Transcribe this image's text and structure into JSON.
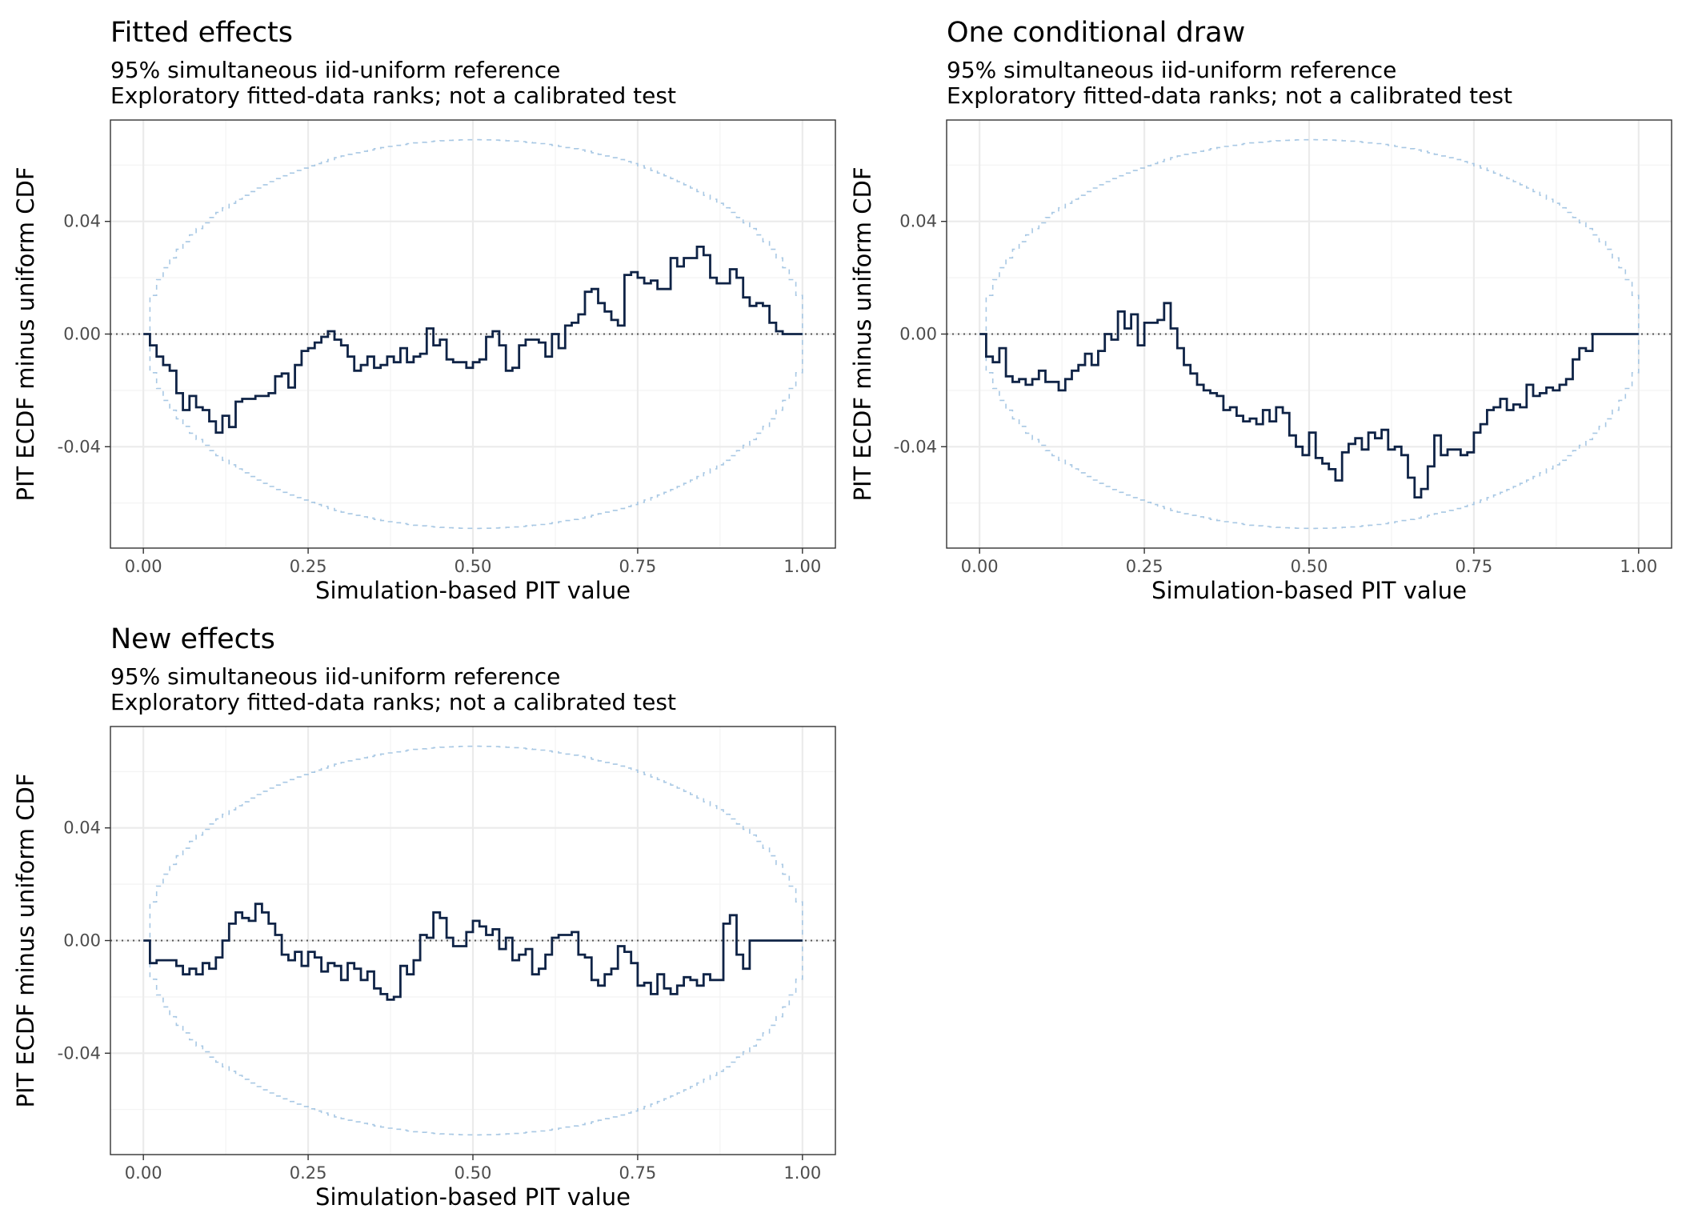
{
  "chart_data": [
    {
      "type": "line",
      "title": "Fitted effects",
      "subtitle": [
        "95% simultaneous iid-uniform reference",
        "Exploratory fitted-data ranks; not a calibrated test"
      ],
      "xlabel": "Simulation-based PIT value",
      "ylabel": "PIT ECDF minus uniform CDF",
      "xlim": [
        -0.05,
        1.05
      ],
      "ylim": [
        -0.076,
        0.076
      ],
      "xticks": [
        0.0,
        0.25,
        0.5,
        0.75,
        1.0
      ],
      "xtick_labels": [
        "0.00",
        "0.25",
        "0.50",
        "0.75",
        "1.00"
      ],
      "yticks": [
        -0.04,
        0.0,
        0.04
      ],
      "ytick_labels": [
        "-0.04",
        "0.00",
        "0.04"
      ],
      "grid": true,
      "reference_band": {
        "style": "dashed",
        "color": "#a8c8e4",
        "max_half_width": 0.069
      },
      "reference_line": {
        "y": 0,
        "style": "dotted"
      },
      "color": "#0f2346",
      "x": [
        0.0,
        0.01,
        0.02,
        0.03,
        0.04,
        0.05,
        0.06,
        0.07,
        0.08,
        0.09,
        0.1,
        0.11,
        0.12,
        0.13,
        0.14,
        0.15,
        0.16,
        0.17,
        0.18,
        0.19,
        0.2,
        0.21,
        0.22,
        0.23,
        0.24,
        0.25,
        0.26,
        0.27,
        0.28,
        0.29,
        0.3,
        0.31,
        0.32,
        0.33,
        0.34,
        0.35,
        0.36,
        0.37,
        0.38,
        0.39,
        0.4,
        0.41,
        0.42,
        0.43,
        0.44,
        0.45,
        0.46,
        0.47,
        0.48,
        0.49,
        0.5,
        0.51,
        0.52,
        0.53,
        0.54,
        0.55,
        0.56,
        0.57,
        0.58,
        0.59,
        0.6,
        0.61,
        0.62,
        0.63,
        0.64,
        0.65,
        0.66,
        0.67,
        0.68,
        0.69,
        0.7,
        0.71,
        0.72,
        0.73,
        0.74,
        0.75,
        0.76,
        0.77,
        0.78,
        0.79,
        0.8,
        0.81,
        0.82,
        0.83,
        0.84,
        0.85,
        0.86,
        0.87,
        0.88,
        0.89,
        0.9,
        0.91,
        0.92,
        0.93,
        0.94,
        0.95,
        0.96,
        0.97,
        0.98,
        0.99,
        1.0
      ],
      "y": [
        0.0,
        -0.004,
        -0.008,
        -0.011,
        -0.013,
        -0.021,
        -0.027,
        -0.022,
        -0.026,
        -0.027,
        -0.031,
        -0.035,
        -0.029,
        -0.033,
        -0.024,
        -0.023,
        -0.023,
        -0.022,
        -0.022,
        -0.021,
        -0.015,
        -0.014,
        -0.019,
        -0.011,
        -0.006,
        -0.005,
        -0.003,
        -0.001,
        0.001,
        -0.002,
        -0.004,
        -0.008,
        -0.013,
        -0.011,
        -0.008,
        -0.012,
        -0.011,
        -0.008,
        -0.01,
        -0.005,
        -0.01,
        -0.008,
        -0.007,
        0.002,
        -0.004,
        -0.002,
        -0.009,
        -0.01,
        -0.01,
        -0.012,
        -0.01,
        -0.009,
        -0.001,
        0.001,
        -0.004,
        -0.013,
        -0.012,
        -0.004,
        -0.002,
        -0.002,
        -0.003,
        -0.008,
        0.0,
        -0.005,
        0.003,
        0.004,
        0.007,
        0.015,
        0.016,
        0.011,
        0.008,
        0.005,
        0.003,
        0.021,
        0.022,
        0.02,
        0.018,
        0.019,
        0.016,
        0.016,
        0.027,
        0.024,
        0.027,
        0.027,
        0.031,
        0.028,
        0.02,
        0.018,
        0.018,
        0.023,
        0.02,
        0.013,
        0.01,
        0.011,
        0.01,
        0.004,
        0.001,
        0.0,
        0.0,
        0.0,
        0.0
      ]
    },
    {
      "type": "line",
      "title": "One conditional draw",
      "subtitle": [
        "95% simultaneous iid-uniform reference",
        "Exploratory fitted-data ranks; not a calibrated test"
      ],
      "xlabel": "Simulation-based PIT value",
      "ylabel": "PIT ECDF minus uniform CDF",
      "xlim": [
        -0.05,
        1.05
      ],
      "ylim": [
        -0.076,
        0.076
      ],
      "xticks": [
        0.0,
        0.25,
        0.5,
        0.75,
        1.0
      ],
      "xtick_labels": [
        "0.00",
        "0.25",
        "0.50",
        "0.75",
        "1.00"
      ],
      "yticks": [
        -0.04,
        0.0,
        0.04
      ],
      "ytick_labels": [
        "-0.04",
        "0.00",
        "0.04"
      ],
      "grid": true,
      "reference_band": {
        "style": "dashed",
        "color": "#a8c8e4",
        "max_half_width": 0.069
      },
      "reference_line": {
        "y": 0,
        "style": "dotted"
      },
      "color": "#0f2346",
      "x": [
        0.0,
        0.01,
        0.02,
        0.03,
        0.04,
        0.05,
        0.06,
        0.07,
        0.08,
        0.09,
        0.1,
        0.11,
        0.12,
        0.13,
        0.14,
        0.15,
        0.16,
        0.17,
        0.18,
        0.19,
        0.2,
        0.21,
        0.22,
        0.23,
        0.24,
        0.25,
        0.26,
        0.27,
        0.28,
        0.29,
        0.3,
        0.31,
        0.32,
        0.33,
        0.34,
        0.35,
        0.36,
        0.37,
        0.38,
        0.39,
        0.4,
        0.41,
        0.42,
        0.43,
        0.44,
        0.45,
        0.46,
        0.47,
        0.48,
        0.49,
        0.5,
        0.51,
        0.52,
        0.53,
        0.54,
        0.55,
        0.56,
        0.57,
        0.58,
        0.59,
        0.6,
        0.61,
        0.62,
        0.63,
        0.64,
        0.65,
        0.66,
        0.67,
        0.68,
        0.69,
        0.7,
        0.71,
        0.72,
        0.73,
        0.74,
        0.75,
        0.76,
        0.77,
        0.78,
        0.79,
        0.8,
        0.81,
        0.82,
        0.83,
        0.84,
        0.85,
        0.86,
        0.87,
        0.88,
        0.89,
        0.9,
        0.91,
        0.92,
        0.93,
        0.94,
        0.95,
        0.96,
        0.97,
        0.98,
        0.99,
        1.0
      ],
      "y": [
        0.0,
        -0.008,
        -0.01,
        -0.005,
        -0.015,
        -0.017,
        -0.016,
        -0.018,
        -0.016,
        -0.013,
        -0.017,
        -0.017,
        -0.02,
        -0.016,
        -0.013,
        -0.011,
        -0.007,
        -0.011,
        -0.006,
        0.0,
        -0.002,
        0.008,
        0.002,
        0.007,
        -0.004,
        0.004,
        0.004,
        0.005,
        0.011,
        0.002,
        -0.005,
        -0.011,
        -0.014,
        -0.018,
        -0.02,
        -0.021,
        -0.022,
        -0.027,
        -0.026,
        -0.029,
        -0.031,
        -0.03,
        -0.032,
        -0.027,
        -0.031,
        -0.026,
        -0.028,
        -0.036,
        -0.04,
        -0.043,
        -0.035,
        -0.044,
        -0.046,
        -0.048,
        -0.052,
        -0.042,
        -0.039,
        -0.037,
        -0.041,
        -0.035,
        -0.037,
        -0.034,
        -0.041,
        -0.04,
        -0.043,
        -0.051,
        -0.058,
        -0.055,
        -0.047,
        -0.036,
        -0.043,
        -0.041,
        -0.041,
        -0.043,
        -0.042,
        -0.035,
        -0.032,
        -0.027,
        -0.026,
        -0.023,
        -0.027,
        -0.025,
        -0.026,
        -0.018,
        -0.022,
        -0.021,
        -0.019,
        -0.02,
        -0.018,
        -0.016,
        -0.009,
        -0.005,
        -0.006,
        0.0,
        0.0,
        0.0,
        0.0,
        0.0,
        0.0,
        0.0,
        0.0
      ]
    },
    {
      "type": "line",
      "title": "New effects",
      "subtitle": [
        "95% simultaneous iid-uniform reference",
        "Exploratory fitted-data ranks; not a calibrated test"
      ],
      "xlabel": "Simulation-based PIT value",
      "ylabel": "PIT ECDF minus uniform CDF",
      "xlim": [
        -0.05,
        1.05
      ],
      "ylim": [
        -0.076,
        0.076
      ],
      "xticks": [
        0.0,
        0.25,
        0.5,
        0.75,
        1.0
      ],
      "xtick_labels": [
        "0.00",
        "0.25",
        "0.50",
        "0.75",
        "1.00"
      ],
      "yticks": [
        -0.04,
        0.0,
        0.04
      ],
      "ytick_labels": [
        "-0.04",
        "0.00",
        "0.04"
      ],
      "grid": true,
      "reference_band": {
        "style": "dashed",
        "color": "#a8c8e4",
        "max_half_width": 0.069
      },
      "reference_line": {
        "y": 0,
        "style": "dotted"
      },
      "color": "#0f2346",
      "x": [
        0.0,
        0.01,
        0.02,
        0.03,
        0.04,
        0.05,
        0.06,
        0.07,
        0.08,
        0.09,
        0.1,
        0.11,
        0.12,
        0.13,
        0.14,
        0.15,
        0.16,
        0.17,
        0.18,
        0.19,
        0.2,
        0.21,
        0.22,
        0.23,
        0.24,
        0.25,
        0.26,
        0.27,
        0.28,
        0.29,
        0.3,
        0.31,
        0.32,
        0.33,
        0.34,
        0.35,
        0.36,
        0.37,
        0.38,
        0.39,
        0.4,
        0.41,
        0.42,
        0.43,
        0.44,
        0.45,
        0.46,
        0.47,
        0.48,
        0.49,
        0.5,
        0.51,
        0.52,
        0.53,
        0.54,
        0.55,
        0.56,
        0.57,
        0.58,
        0.59,
        0.6,
        0.61,
        0.62,
        0.63,
        0.64,
        0.65,
        0.66,
        0.67,
        0.68,
        0.69,
        0.7,
        0.71,
        0.72,
        0.73,
        0.74,
        0.75,
        0.76,
        0.77,
        0.78,
        0.79,
        0.8,
        0.81,
        0.82,
        0.83,
        0.84,
        0.85,
        0.86,
        0.87,
        0.88,
        0.89,
        0.9,
        0.91,
        0.92,
        0.93,
        0.94,
        0.95,
        0.96,
        0.97,
        0.98,
        0.99,
        1.0
      ],
      "y": [
        0.0,
        -0.008,
        -0.007,
        -0.007,
        -0.007,
        -0.009,
        -0.012,
        -0.01,
        -0.012,
        -0.008,
        -0.01,
        -0.006,
        0.0,
        0.006,
        0.01,
        0.008,
        0.007,
        0.013,
        0.01,
        0.006,
        0.002,
        -0.005,
        -0.007,
        -0.004,
        -0.009,
        -0.004,
        -0.006,
        -0.011,
        -0.008,
        -0.009,
        -0.014,
        -0.008,
        -0.01,
        -0.014,
        -0.011,
        -0.017,
        -0.019,
        -0.021,
        -0.02,
        -0.009,
        -0.012,
        -0.007,
        0.002,
        0.001,
        0.01,
        0.008,
        0.001,
        -0.002,
        -0.002,
        0.003,
        0.007,
        0.005,
        0.002,
        0.004,
        -0.003,
        0.001,
        -0.007,
        -0.005,
        -0.003,
        -0.012,
        -0.01,
        -0.005,
        0.001,
        0.002,
        0.002,
        0.003,
        -0.005,
        -0.006,
        -0.014,
        -0.016,
        -0.012,
        -0.01,
        -0.002,
        -0.004,
        -0.008,
        -0.016,
        -0.015,
        -0.019,
        -0.012,
        -0.017,
        -0.019,
        -0.016,
        -0.013,
        -0.014,
        -0.016,
        -0.012,
        -0.014,
        -0.014,
        0.006,
        0.009,
        -0.005,
        -0.01,
        0.0,
        0.0,
        0.0,
        0.0,
        0.0,
        0.0,
        0.0,
        0.0,
        0.0
      ]
    }
  ]
}
